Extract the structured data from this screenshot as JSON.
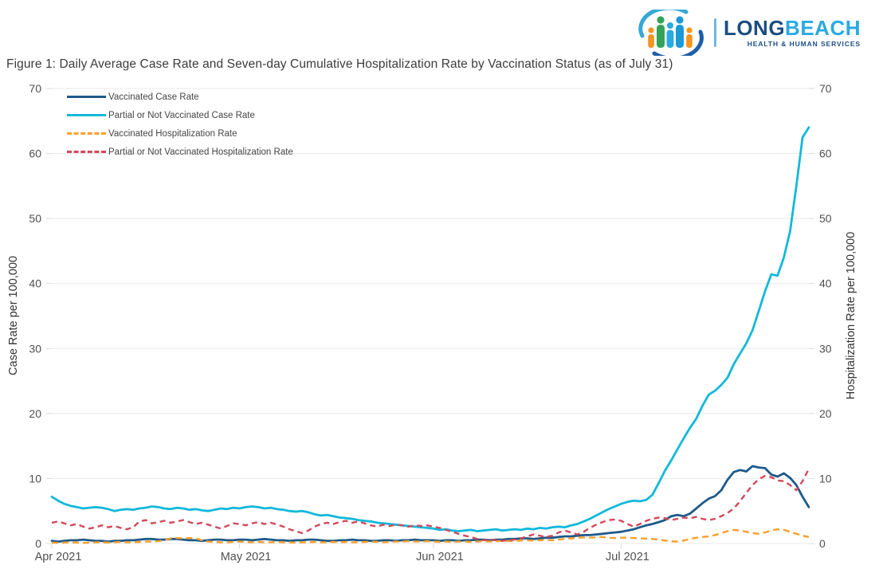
{
  "header": {
    "logo": {
      "word_part1": "LONG",
      "word_part2": "BEACH",
      "subtext": "HEALTH & HUMAN SERVICES",
      "colors": {
        "navy": "#1b4e80",
        "cyan": "#29aae1"
      }
    }
  },
  "figure_title": "Figure 1: Daily Average Case Rate and Seven-day Cumulative Hospitalization Rate by Vaccination Status (as of July 31)",
  "chart_data": {
    "type": "line",
    "title": "Figure 1: Daily Average Case Rate and Seven-day Cumulative Hospitalization Rate by Vaccination Status (as of July 31)",
    "x_axis": {
      "unit": "day",
      "start_label": "Apr 1, 2021",
      "end_label": "Jul 31, 2021",
      "n_points": 122,
      "ticks": [
        {
          "label": "Apr 2021",
          "day_index": 0
        },
        {
          "label": "May 2021",
          "day_index": 30
        },
        {
          "label": "Jun 2021",
          "day_index": 61
        },
        {
          "label": "Jul 2021",
          "day_index": 91
        }
      ]
    },
    "y_left": {
      "label": "Case Rate per 100,000",
      "min": 0,
      "max": 70,
      "tick_step": 10
    },
    "y_right": {
      "label": "Hospitalization Rate per 100,000",
      "min": 0,
      "max": 70,
      "tick_step": 10
    },
    "grid": {
      "horizontal": true,
      "vertical": false,
      "color": "#e8e8e8"
    },
    "legend_position": "top-left-inside",
    "series": [
      {
        "name": "Vaccinated Case Rate",
        "color": "#1d5a8a",
        "style": "solid",
        "axis": "left",
        "values": [
          0.4,
          0.3,
          0.4,
          0.5,
          0.5,
          0.6,
          0.5,
          0.4,
          0.4,
          0.3,
          0.4,
          0.4,
          0.5,
          0.5,
          0.6,
          0.7,
          0.7,
          0.6,
          0.6,
          0.7,
          0.7,
          0.6,
          0.5,
          0.5,
          0.4,
          0.5,
          0.6,
          0.6,
          0.5,
          0.5,
          0.6,
          0.6,
          0.5,
          0.6,
          0.7,
          0.6,
          0.5,
          0.5,
          0.4,
          0.5,
          0.5,
          0.6,
          0.6,
          0.5,
          0.4,
          0.4,
          0.5,
          0.5,
          0.6,
          0.5,
          0.5,
          0.4,
          0.4,
          0.5,
          0.5,
          0.4,
          0.5,
          0.5,
          0.6,
          0.5,
          0.5,
          0.5,
          0.4,
          0.5,
          0.5,
          0.4,
          0.5,
          0.5,
          0.6,
          0.6,
          0.5,
          0.6,
          0.6,
          0.7,
          0.7,
          0.8,
          0.8,
          0.7,
          0.8,
          0.9,
          0.9,
          1.0,
          1.1,
          1.1,
          1.2,
          1.3,
          1.3,
          1.4,
          1.5,
          1.6,
          1.7,
          1.8,
          2.0,
          2.2,
          2.5,
          2.8,
          3.0,
          3.3,
          3.6,
          4.2,
          4.4,
          4.2,
          4.6,
          5.4,
          6.2,
          6.9,
          7.3,
          8.2,
          9.8,
          11.0,
          11.3,
          11.1,
          11.9,
          11.7,
          11.6,
          10.6,
          10.3,
          10.8,
          10.1,
          9.0,
          7.2,
          5.6
        ]
      },
      {
        "name": "Partial or Not Vaccinated Case Rate",
        "color": "#12b8db",
        "style": "solid",
        "axis": "left",
        "values": [
          7.2,
          6.6,
          6.1,
          5.8,
          5.6,
          5.4,
          5.5,
          5.6,
          5.5,
          5.3,
          5.0,
          5.2,
          5.3,
          5.2,
          5.4,
          5.5,
          5.7,
          5.6,
          5.4,
          5.3,
          5.5,
          5.4,
          5.2,
          5.3,
          5.1,
          5.0,
          5.2,
          5.4,
          5.3,
          5.5,
          5.4,
          5.6,
          5.7,
          5.6,
          5.4,
          5.5,
          5.3,
          5.2,
          5.0,
          4.9,
          5.0,
          4.8,
          4.5,
          4.3,
          4.4,
          4.2,
          4.0,
          3.9,
          3.8,
          3.6,
          3.5,
          3.4,
          3.2,
          3.1,
          3.0,
          2.9,
          2.8,
          2.7,
          2.6,
          2.5,
          2.4,
          2.3,
          2.1,
          2.2,
          2.0,
          1.9,
          2.0,
          2.1,
          1.9,
          2.0,
          2.1,
          2.2,
          2.0,
          2.1,
          2.2,
          2.1,
          2.3,
          2.2,
          2.4,
          2.3,
          2.5,
          2.6,
          2.5,
          2.8,
          3.0,
          3.4,
          3.8,
          4.3,
          4.8,
          5.3,
          5.7,
          6.1,
          6.4,
          6.6,
          6.5,
          6.7,
          7.5,
          9.3,
          11.2,
          12.8,
          14.5,
          16.2,
          17.8,
          19.2,
          21.2,
          22.9,
          23.5,
          24.4,
          25.5,
          27.6,
          29.2,
          30.8,
          32.8,
          35.8,
          38.8,
          41.4,
          41.2,
          44.0,
          48.0,
          55.0,
          62.5,
          64.0
        ]
      },
      {
        "name": "Vaccinated Hospitalization Rate",
        "color": "#f9a02e",
        "style": "dashed",
        "axis": "right",
        "values": [
          0.15,
          0.1,
          0.15,
          0.2,
          0.15,
          0.1,
          0.15,
          0.2,
          0.2,
          0.15,
          0.2,
          0.25,
          0.2,
          0.2,
          0.25,
          0.3,
          0.3,
          0.35,
          0.5,
          0.8,
          0.85,
          0.8,
          0.85,
          0.8,
          0.5,
          0.3,
          0.25,
          0.2,
          0.2,
          0.25,
          0.3,
          0.25,
          0.2,
          0.25,
          0.2,
          0.2,
          0.25,
          0.2,
          0.2,
          0.15,
          0.2,
          0.2,
          0.25,
          0.2,
          0.2,
          0.25,
          0.2,
          0.25,
          0.2,
          0.2,
          0.25,
          0.3,
          0.25,
          0.2,
          0.25,
          0.3,
          0.3,
          0.35,
          0.3,
          0.3,
          0.35,
          0.3,
          0.25,
          0.3,
          0.25,
          0.3,
          0.3,
          0.25,
          0.3,
          0.35,
          0.3,
          0.35,
          0.4,
          0.35,
          0.4,
          0.45,
          0.5,
          0.45,
          0.5,
          0.55,
          0.5,
          0.6,
          0.7,
          0.8,
          0.9,
          0.95,
          0.9,
          0.95,
          1.0,
          0.9,
          0.85,
          0.9,
          0.9,
          0.85,
          0.8,
          0.75,
          0.7,
          0.6,
          0.45,
          0.35,
          0.3,
          0.45,
          0.7,
          0.9,
          1.0,
          1.1,
          1.3,
          1.6,
          1.9,
          2.1,
          2.0,
          1.8,
          1.6,
          1.5,
          1.7,
          2.0,
          2.2,
          2.1,
          1.8,
          1.5,
          1.2,
          1.0
        ]
      },
      {
        "name": "Partial or Not Vaccinated Hospitalization Rate",
        "color": "#d2495a",
        "style": "dashed",
        "axis": "right",
        "values": [
          3.2,
          3.4,
          3.1,
          2.8,
          3.0,
          2.6,
          2.3,
          2.5,
          2.8,
          2.5,
          2.7,
          2.4,
          2.2,
          2.5,
          3.4,
          3.6,
          3.1,
          3.3,
          3.5,
          3.2,
          3.4,
          3.6,
          3.3,
          3.0,
          3.2,
          2.9,
          2.6,
          2.3,
          2.7,
          3.1,
          3.0,
          2.8,
          3.1,
          3.3,
          3.0,
          3.2,
          2.9,
          2.6,
          2.2,
          1.9,
          1.6,
          2.0,
          2.6,
          3.0,
          3.2,
          3.0,
          3.3,
          3.5,
          3.2,
          3.4,
          3.1,
          2.8,
          2.6,
          2.9,
          2.7,
          2.9,
          2.8,
          2.6,
          2.8,
          2.7,
          2.8,
          2.6,
          2.4,
          2.1,
          1.8,
          1.5,
          1.2,
          1.0,
          0.7,
          0.5,
          0.6,
          0.5,
          0.4,
          0.5,
          0.6,
          0.8,
          1.1,
          1.4,
          1.2,
          1.0,
          1.2,
          1.7,
          2.0,
          1.7,
          1.4,
          1.8,
          2.4,
          2.9,
          3.3,
          3.6,
          3.7,
          3.5,
          3.0,
          2.6,
          3.0,
          3.5,
          3.8,
          4.0,
          3.9,
          3.6,
          3.8,
          4.0,
          3.9,
          4.1,
          3.8,
          3.6,
          3.8,
          4.2,
          4.7,
          5.4,
          6.5,
          7.8,
          9.0,
          9.9,
          10.4,
          10.2,
          9.7,
          9.6,
          9.0,
          8.2,
          9.6,
          11.5
        ]
      }
    ]
  }
}
